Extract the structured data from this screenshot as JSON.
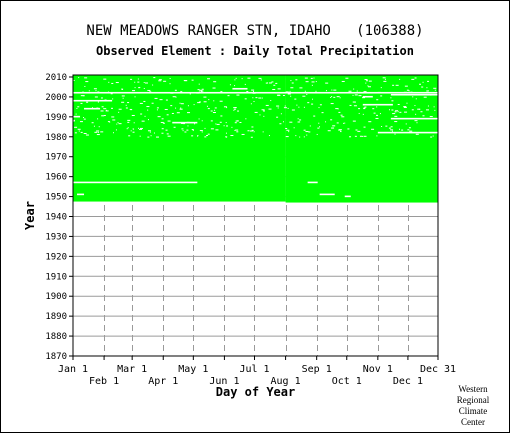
{
  "header": {
    "title": "NEW MEADOWS RANGER STN, IDAHO   (106388)",
    "subtitle": "Observed Element : Daily Total Precipitation"
  },
  "credit": {
    "lines": [
      "Western",
      "Regional",
      "Climate",
      "Center"
    ]
  },
  "colors": {
    "data": "#00ff00",
    "grid": "#9a9a9a",
    "axis": "#000000",
    "background": "#ffffff"
  },
  "chart_data": {
    "type": "heatmap",
    "title": "NEW MEADOWS RANGER STN, IDAHO   (106388)",
    "subtitle": "Observed Element : Daily Total Precipitation",
    "xlabel": "Day of Year",
    "ylabel": "Year",
    "ylim": [
      1870,
      2011
    ],
    "xlim": [
      1,
      365
    ],
    "grid": true,
    "y_ticks": [
      1870,
      1880,
      1890,
      1900,
      1910,
      1920,
      1930,
      1940,
      1950,
      1960,
      1970,
      1980,
      1990,
      2000,
      2010
    ],
    "x_ticks": [
      {
        "label": "Jan 1",
        "day": 1,
        "row": 0
      },
      {
        "label": "Feb 1",
        "day": 32,
        "row": 1
      },
      {
        "label": "Mar 1",
        "day": 60,
        "row": 0
      },
      {
        "label": "Apr 1",
        "day": 91,
        "row": 1
      },
      {
        "label": "May 1",
        "day": 121,
        "row": 0
      },
      {
        "label": "Jun 1",
        "day": 152,
        "row": 1
      },
      {
        "label": "Jul 1",
        "day": 182,
        "row": 0
      },
      {
        "label": "Aug 1",
        "day": 213,
        "row": 1
      },
      {
        "label": "Sep 1",
        "day": 244,
        "row": 0
      },
      {
        "label": "Oct 1",
        "day": 274,
        "row": 1
      },
      {
        "label": "Nov 1",
        "day": 305,
        "row": 0
      },
      {
        "label": "Dec 1",
        "day": 335,
        "row": 1
      },
      {
        "label": "Dec 31",
        "day": 365,
        "row": 0
      }
    ],
    "coverage": [
      {
        "start_year": 1947.5,
        "end_year": 2011,
        "start_day": 1,
        "end_day": 213
      },
      {
        "start_year": 1947.0,
        "end_year": 2011,
        "start_day": 213,
        "end_day": 365
      }
    ],
    "missing_segments": [
      {
        "year": 2002,
        "start_day": 1,
        "end_day": 365
      },
      {
        "year": 1998,
        "start_day": 1,
        "end_day": 40
      },
      {
        "year": 1994,
        "start_day": 12,
        "end_day": 28
      },
      {
        "year": 1957,
        "start_day": 1,
        "end_day": 125
      },
      {
        "year": 1957,
        "start_day": 235,
        "end_day": 245
      },
      {
        "year": 1951,
        "start_day": 5,
        "end_day": 12
      },
      {
        "year": 1951,
        "start_day": 247,
        "end_day": 262
      },
      {
        "year": 1950,
        "start_day": 272,
        "end_day": 278
      },
      {
        "year": 2004,
        "start_day": 160,
        "end_day": 175
      },
      {
        "year": 2001,
        "start_day": 318,
        "end_day": 365
      },
      {
        "year": 1996,
        "start_day": 290,
        "end_day": 320
      },
      {
        "year": 1989,
        "start_day": 318,
        "end_day": 365
      },
      {
        "year": 1990,
        "start_day": 1,
        "end_day": 8
      },
      {
        "year": 1987,
        "start_day": 100,
        "end_day": 125
      },
      {
        "year": 2000,
        "start_day": 290,
        "end_day": 300
      },
      {
        "year": 1982,
        "start_day": 305,
        "end_day": 365
      }
    ]
  }
}
